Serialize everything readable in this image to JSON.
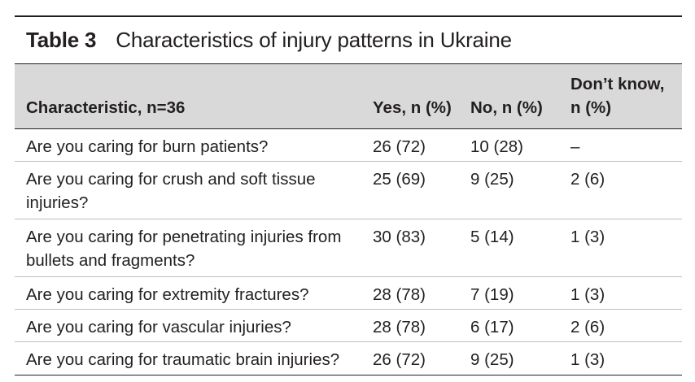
{
  "caption": {
    "label": "Table 3",
    "title": "Characteristics of injury patterns in Ukraine"
  },
  "columns": {
    "characteristic": "Characteristic, n=36",
    "yes": "Yes, n (%)",
    "no": "No, n (%)",
    "dont_know_line1": "Don’t know,",
    "dont_know_line2": "n (%)"
  },
  "rows": [
    {
      "question": "Are you caring for burn patients?",
      "yes": "26 (72)",
      "no": "10 (28)",
      "dont_know": "–"
    },
    {
      "question": "Are you caring for crush and soft tissue injuries?",
      "yes": "25 (69)",
      "no": "9 (25)",
      "dont_know": "2 (6)"
    },
    {
      "question": "Are you caring for penetrating injuries from bullets and fragments?",
      "yes": "30 (83)",
      "no": "5 (14)",
      "dont_know": "1 (3)"
    },
    {
      "question": "Are you caring for extremity fractures?",
      "yes": "28 (78)",
      "no": "7 (19)",
      "dont_know": "1 (3)"
    },
    {
      "question": "Are you caring for vascular injuries?",
      "yes": "28 (78)",
      "no": "6 (17)",
      "dont_know": "2 (6)"
    },
    {
      "question": "Are you caring for traumatic brain injuries?",
      "yes": "26 (72)",
      "no": "9 (25)",
      "dont_know": "1 (3)"
    }
  ]
}
